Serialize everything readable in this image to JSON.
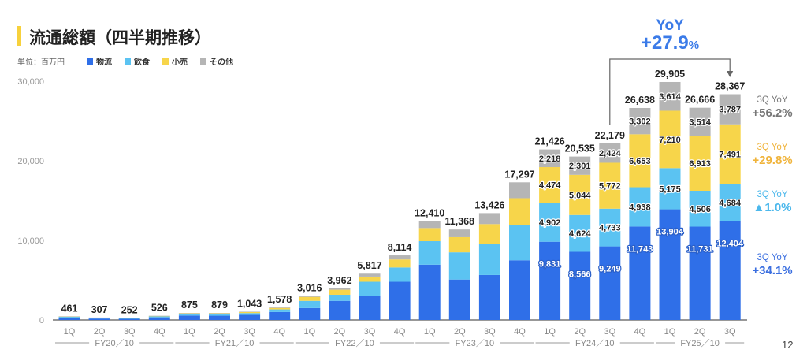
{
  "header": {
    "title": "流通総額（四半期推移）",
    "unit": "単位：百万円",
    "page_number": "12"
  },
  "colors": {
    "logistics": "#2f6fe8",
    "food": "#5bc3f2",
    "retail": "#f7d54a",
    "other": "#b5b5b5",
    "accent_yoy": "#3b7be8"
  },
  "chart_data": {
    "type": "bar",
    "stacked": true,
    "title": "流通総額（四半期推移）",
    "ylabel": "単位：百万円",
    "ylim": [
      0,
      30000
    ],
    "yticks": [
      "0",
      "10,000",
      "20,000",
      "30,000"
    ],
    "yticks_values": [
      0,
      10000,
      20000,
      30000
    ],
    "categories": [
      "1Q",
      "2Q",
      "3Q",
      "4Q",
      "1Q",
      "2Q",
      "3Q",
      "4Q",
      "1Q",
      "2Q",
      "3Q",
      "4Q",
      "1Q",
      "2Q",
      "3Q",
      "4Q",
      "1Q",
      "2Q",
      "3Q",
      "4Q",
      "1Q",
      "2Q",
      "3Q"
    ],
    "groups": [
      {
        "label": "FY20／10",
        "count": 4
      },
      {
        "label": "FY21／10",
        "count": 4
      },
      {
        "label": "FY22／10",
        "count": 4
      },
      {
        "label": "FY23／10",
        "count": 4
      },
      {
        "label": "FY24／10",
        "count": 4
      },
      {
        "label": "FY25／10",
        "count": 3
      }
    ],
    "totals": [
      "461",
      "307",
      "252",
      "526",
      "875",
      "879",
      "1,043",
      "1,578",
      "3,016",
      "3,962",
      "5,817",
      "8,114",
      "12,410",
      "11,368",
      "13,426",
      "17,297",
      "21,426",
      "20,535",
      "22,179",
      "26,638",
      "29,905",
      "26,666",
      "28,367"
    ],
    "segment_labels_from_index": 16,
    "series": [
      {
        "name": "物流",
        "key": "logistics",
        "values": [
          300,
          180,
          150,
          330,
          560,
          540,
          640,
          1000,
          1500,
          2400,
          3050,
          4800,
          6950,
          5080,
          5650,
          7500,
          9831,
          8566,
          9249,
          11743,
          13904,
          11731,
          12404
        ]
      },
      {
        "name": "飲食",
        "key": "food",
        "values": [
          110,
          80,
          70,
          120,
          200,
          190,
          230,
          330,
          900,
          770,
          1750,
          1800,
          2950,
          3420,
          3950,
          4400,
          4902,
          4624,
          4733,
          4938,
          5175,
          4506,
          4684
        ]
      },
      {
        "name": "小売",
        "key": "retail",
        "values": [
          30,
          30,
          20,
          50,
          80,
          110,
          120,
          180,
          500,
          630,
          650,
          1000,
          1650,
          1900,
          2450,
          3400,
          4474,
          5044,
          5772,
          6653,
          7210,
          6913,
          7491
        ]
      },
      {
        "name": "その他",
        "key": "other",
        "values": [
          21,
          17,
          12,
          26,
          35,
          39,
          53,
          68,
          116,
          162,
          367,
          514,
          860,
          968,
          1376,
          1997,
          2218,
          2301,
          2424,
          3302,
          3614,
          3514,
          3787
        ]
      }
    ],
    "legend": "top-left",
    "annotations": {
      "yoy_total": {
        "label": "YoY",
        "value": "+27.9",
        "unit": "%"
      },
      "segment_yoy": [
        {
          "label": "3Q YoY",
          "value": "+56.2%",
          "color": "#777777"
        },
        {
          "label": "3Q YoY",
          "value": "+29.8%",
          "color": "#f0b43c"
        },
        {
          "label": "3Q YoY",
          "value": "▲1.0%",
          "color": "#4cb8ec"
        },
        {
          "label": "3Q YoY",
          "value": "+34.1%",
          "color": "#3b6fe0"
        }
      ]
    }
  }
}
